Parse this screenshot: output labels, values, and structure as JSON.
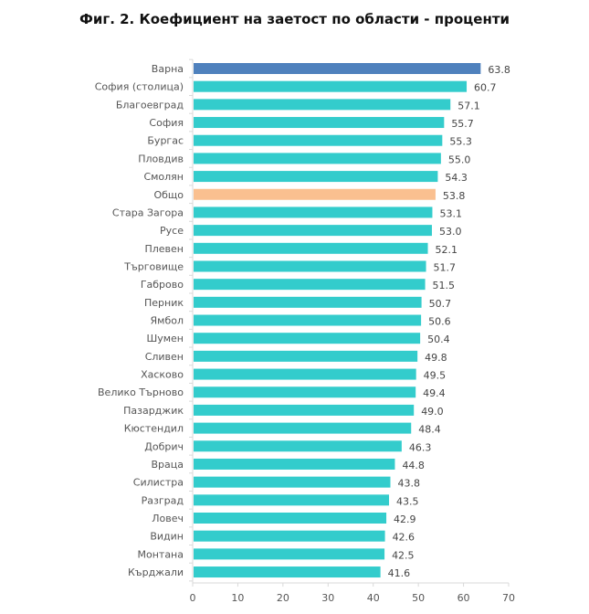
{
  "chart_data": {
    "type": "bar",
    "orientation": "horizontal",
    "title": "Фиг. 2. Коефициент на заетост по области - проценти",
    "xlabel": "",
    "ylabel": "",
    "xlim": [
      0,
      70
    ],
    "x_ticks": [
      "0",
      "10",
      "20",
      "30",
      "40",
      "50",
      "60",
      "70"
    ],
    "grid": false,
    "categories": [
      "Варна",
      "София (столица)",
      "Благоевград",
      "София",
      "Бургас",
      "Пловдив",
      "Смолян",
      "Общо",
      "Стара Загора",
      "Русе",
      "Плевен",
      "Търговище",
      "Габрово",
      "Перник",
      "Ямбол",
      "Шумен",
      "Сливен",
      "Хасково",
      "Велико Търново",
      "Пазарджик",
      "Кюстендил",
      "Добрич",
      "Враца",
      "Силистра",
      "Разград",
      "Ловеч",
      "Видин",
      "Монтана",
      "Кърджали"
    ],
    "values": [
      63.8,
      60.7,
      57.1,
      55.7,
      55.3,
      55.0,
      54.3,
      53.8,
      53.1,
      53.0,
      52.1,
      51.7,
      51.5,
      50.7,
      50.6,
      50.4,
      49.8,
      49.5,
      49.4,
      49.0,
      48.4,
      46.3,
      44.8,
      43.8,
      43.5,
      42.9,
      42.6,
      42.5,
      41.6
    ],
    "value_labels": [
      "63.8",
      "60.7",
      "57.1",
      "55.7",
      "55.3",
      "55.0",
      "54.3",
      "53.8",
      "53.1",
      "53.0",
      "52.1",
      "51.7",
      "51.5",
      "50.7",
      "50.6",
      "50.4",
      "49.8",
      "49.5",
      "49.4",
      "49.0",
      "48.4",
      "46.3",
      "44.8",
      "43.8",
      "43.5",
      "42.9",
      "42.6",
      "42.5",
      "41.6"
    ],
    "colors": {
      "default": "#33CCCC",
      "highlight_top": "#4F81BD",
      "highlight_total": "#FAC090",
      "axis": "#D9D9D9"
    },
    "highlights": {
      "Варна": "highlight_top",
      "Общо": "highlight_total"
    }
  }
}
